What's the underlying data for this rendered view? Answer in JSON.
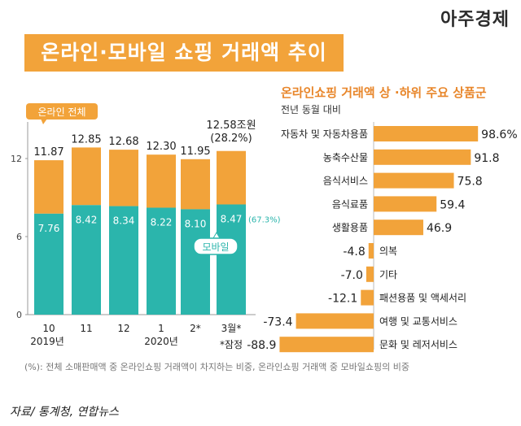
{
  "brand": "아주경제",
  "title": "온라인·모바일 쇼핑 거래액 추이",
  "right_title": "온라인쇼핑 거래액 상 ·하위 주요 상품군",
  "right_subtitle": "전년 동월 대비",
  "footnote": "(%): 전체 소매판매액 중 온라인쇼핑 거래액이 차지하는 비중, 온라인쇼핑 거래액 중 모바일쇼핑의 비중",
  "source": "자료/ 통계청, 연합뉴스",
  "colors": {
    "online": "#f2a33a",
    "mobile": "#2bb5ac",
    "accent": "#e8862a"
  },
  "chart_data": [
    {
      "type": "bar",
      "title": "온라인·모바일 쇼핑 거래액 추이",
      "categories": [
        "10",
        "11",
        "12",
        "1",
        "2*",
        "3월*"
      ],
      "year_labels": [
        "2019년",
        "2020년"
      ],
      "series": [
        {
          "name": "온라인 전체",
          "values": [
            11.87,
            12.85,
            12.68,
            12.3,
            11.95,
            12.58
          ]
        },
        {
          "name": "모바일",
          "values": [
            7.76,
            8.42,
            8.34,
            8.22,
            8.1,
            8.47
          ]
        }
      ],
      "last_total_label": "12.58조원",
      "last_total_pct": "(28.2%)",
      "last_mobile_pct": "(67.3%)",
      "provisional_note": "*잠정",
      "legend_online": "온라인 전체",
      "legend_mobile": "모바일",
      "yticks": [
        "0",
        "6",
        "12"
      ],
      "ylim": [
        0,
        15
      ]
    },
    {
      "type": "bar",
      "orientation": "horizontal",
      "title": "온라인쇼핑 거래액 상 ·하위 주요 상품군",
      "subtitle": "전년 동월 대비",
      "categories": [
        "자동차 및 자동차용품",
        "농축수산물",
        "음식서비스",
        "음식료품",
        "생활용품",
        "의복",
        "기타",
        "패션용품 및 액세서리",
        "여행 및 교통서비스",
        "문화 및 레저서비스"
      ],
      "values": [
        98.6,
        91.8,
        75.8,
        59.4,
        46.9,
        -4.8,
        -7.0,
        -12.1,
        -73.4,
        -88.9
      ],
      "value_labels": [
        "98.6%",
        "91.8",
        "75.8",
        "59.4",
        "46.9",
        "-4.8",
        "-7.0",
        "-12.1",
        "-73.4",
        "-88.9"
      ]
    }
  ]
}
